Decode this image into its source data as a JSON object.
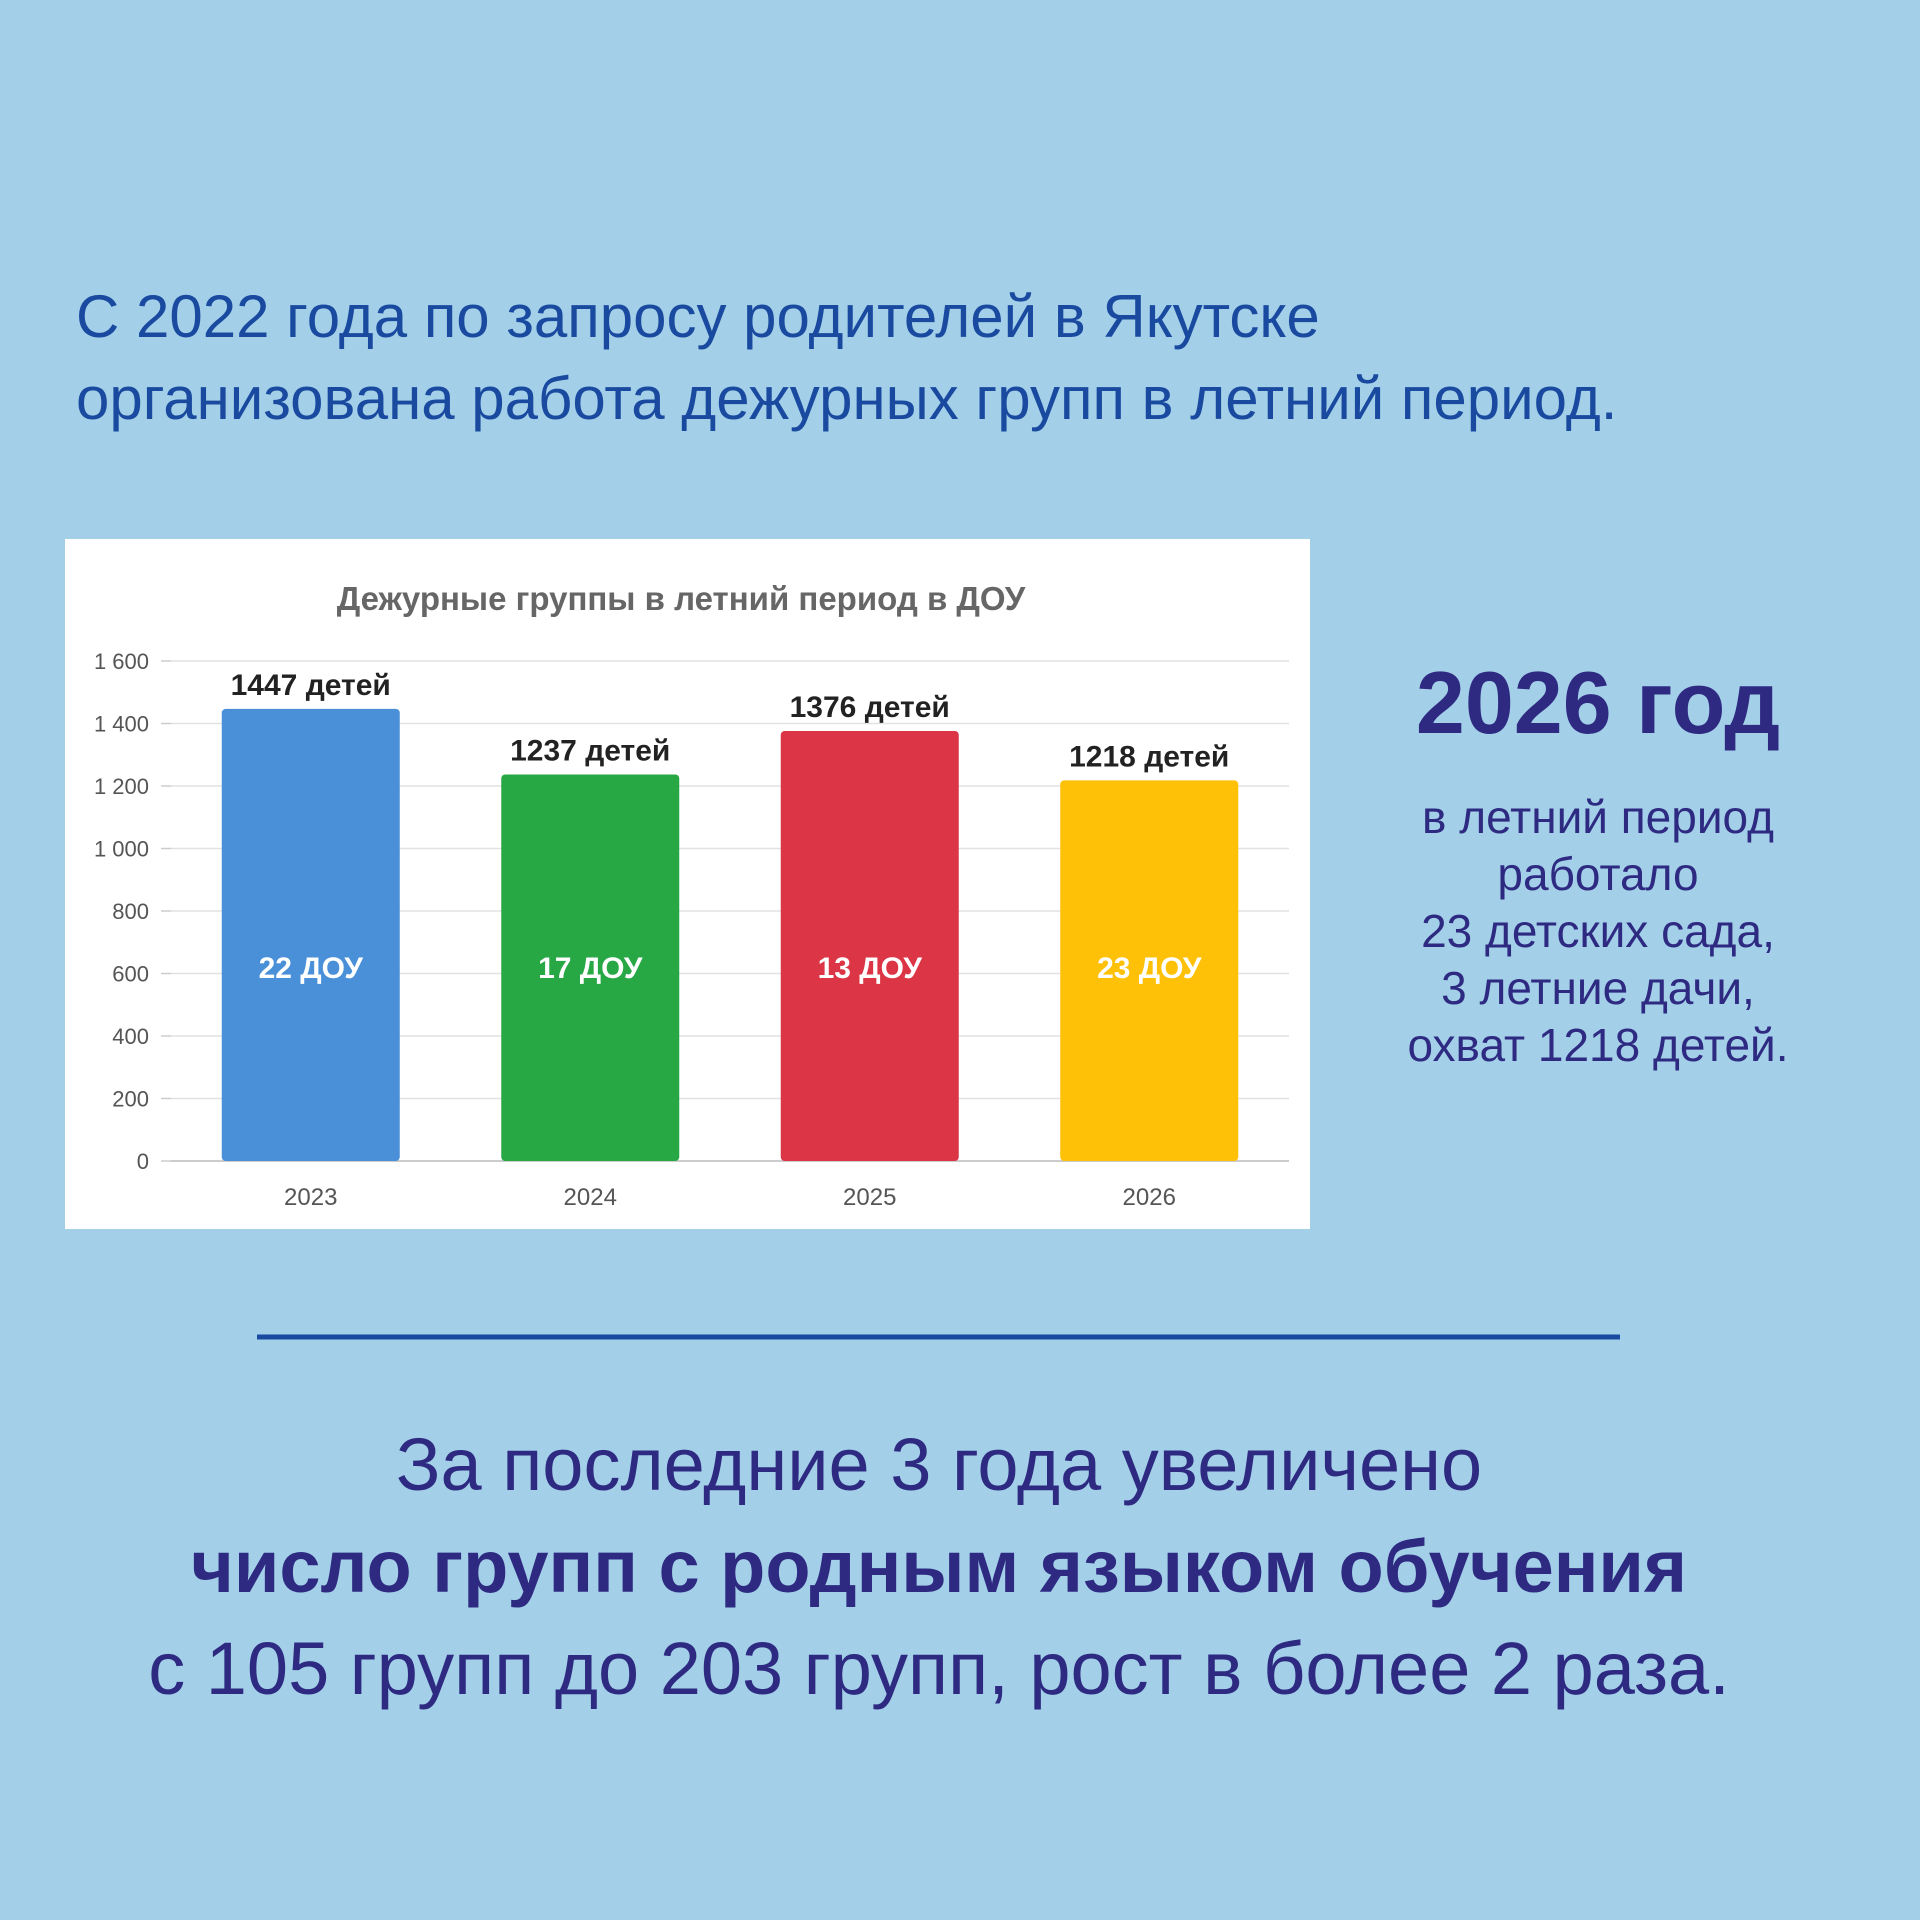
{
  "header": {
    "lines": [
      "С 2022 года по запросу родителей в Якутске",
      "организована работа дежурных групп в летний период."
    ]
  },
  "chart_data": {
    "type": "bar",
    "title": "Дежурные группы в летний период в ДОУ",
    "categories": [
      "2023",
      "2024",
      "2025",
      "2026"
    ],
    "values": [
      1447,
      1237,
      1376,
      1218
    ],
    "value_labels": [
      "1447 детей",
      "1237 детей",
      "1376 детей",
      "1218 детей"
    ],
    "bar_labels": [
      "22 ДОУ",
      "17 ДОУ",
      "13 ДОУ",
      "23 ДОУ"
    ],
    "colors": [
      "#4a90d9",
      "#28a745",
      "#dc3545",
      "#ffc107"
    ],
    "ylim": [
      0,
      1600
    ],
    "yticks": [
      0,
      200,
      400,
      600,
      800,
      {
        "value": 1000,
        "label": "1 000"
      },
      {
        "value": 1200,
        "label": "1 200"
      },
      {
        "value": 1400,
        "label": "1 400"
      },
      {
        "value": 1600,
        "label": "1 600"
      }
    ],
    "grid": true
  },
  "aside": {
    "title": "2026 год",
    "lines": [
      "в летний период",
      "работало",
      "23 детских сада,",
      "3 летние дачи,",
      "охват 1218 детей."
    ]
  },
  "footer": {
    "lines": [
      "За последние 3 года увеличено",
      "число групп с родным языком обучения",
      "с 105 групп до 203 групп, рост в более  2 раза."
    ]
  }
}
